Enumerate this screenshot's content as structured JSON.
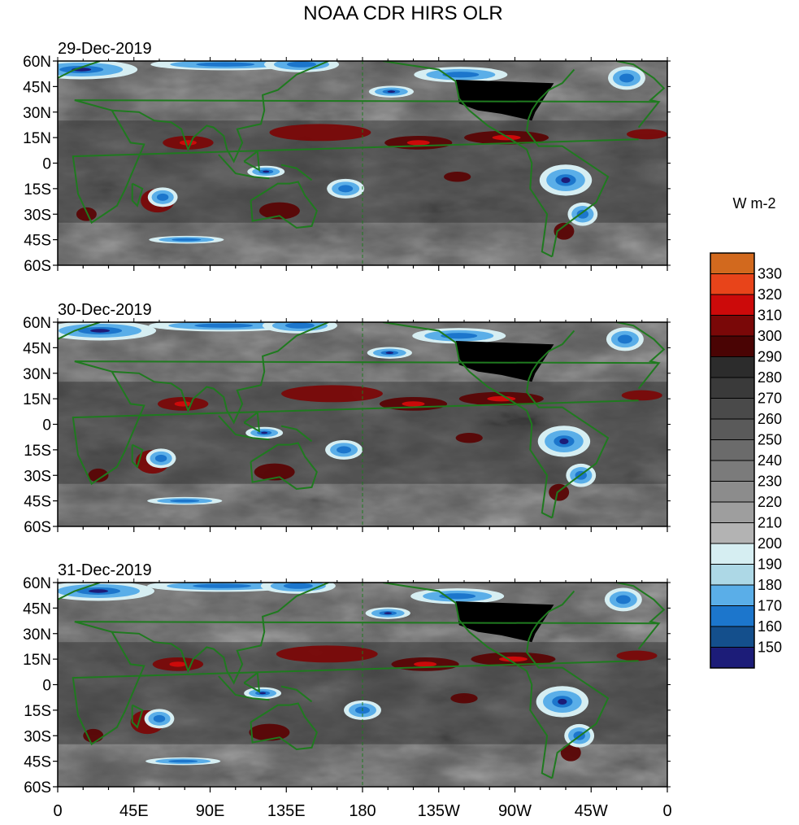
{
  "chart_data": {
    "type": "heatmap",
    "title": "NOAA CDR HIRS OLR",
    "units": "W m-2",
    "x_ticks": [
      "0",
      "45E",
      "90E",
      "135E",
      "180",
      "135W",
      "90W",
      "45W",
      "0"
    ],
    "x_range_deg_east": [
      0,
      360
    ],
    "y_ticks": [
      "60N",
      "45N",
      "30N",
      "15N",
      "0",
      "15S",
      "30S",
      "45S",
      "60S"
    ],
    "y_range_deg": [
      60,
      -60
    ],
    "panels": [
      {
        "date": "29-Dec-2019"
      },
      {
        "date": "30-Dec-2019"
      },
      {
        "date": "31-Dec-2019"
      }
    ],
    "colorbar": {
      "levels": [
        "330",
        "320",
        "310",
        "300",
        "290",
        "280",
        "270",
        "260",
        "250",
        "240",
        "230",
        "220",
        "210",
        "200",
        "190",
        "180",
        "170",
        "160",
        "150"
      ],
      "colors": [
        "#d2691e",
        "#e8441a",
        "#cc0a0a",
        "#7a0808",
        "#4a0404",
        "#2c2c2c",
        "#3a3a3a",
        "#4a4a4a",
        "#5a5a5a",
        "#6b6b6b",
        "#7b7b7b",
        "#8c8c8c",
        "#9e9e9e",
        "#b3b3b3",
        "#d6eef2",
        "#add8e6",
        "#5aaee8",
        "#1c76cc",
        "#144f8c",
        "#1c1c78"
      ]
    },
    "features": {
      "coastline_color": "#1f7a1f",
      "dateline_color": "#1f7a1f",
      "land_mask_color": "#000000"
    }
  }
}
